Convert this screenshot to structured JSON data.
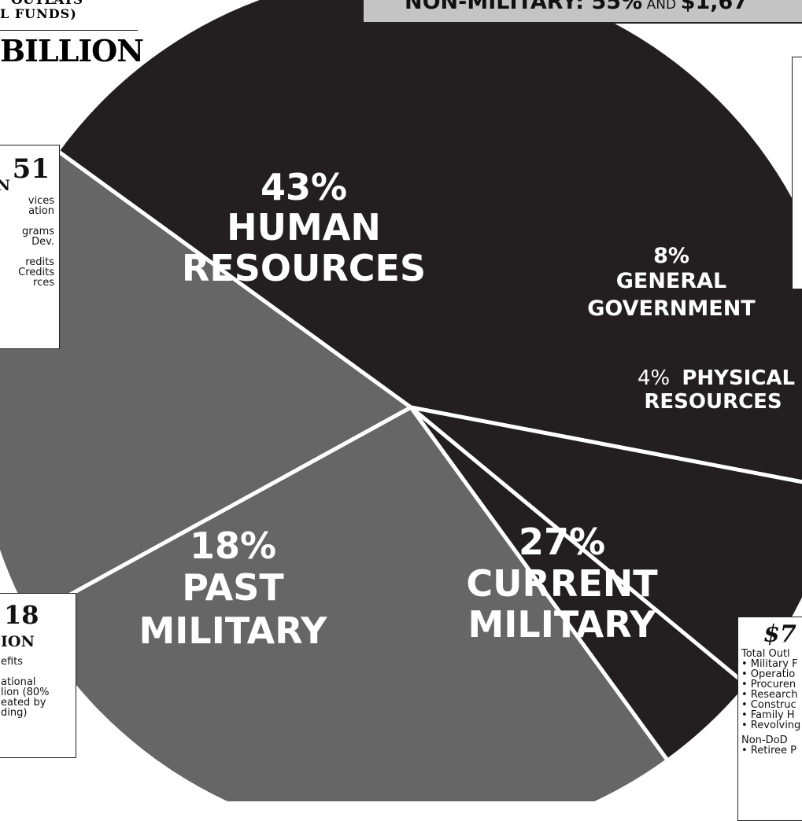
{
  "banner": {
    "text_big_1": "NON-MILITARY: 55%",
    "text_small": "AND",
    "text_big_2": "$1,67"
  },
  "header": {
    "line1": "OUTLAYS",
    "line2": "L FUNDS)",
    "total": "BILLION"
  },
  "left_box": {
    "amount": "51",
    "unit": "N",
    "lines": [
      "vices",
      "ation",
      "",
      "grams",
      "Dev.",
      "",
      "redits",
      "Credits",
      "rces"
    ]
  },
  "lower_left_box": {
    "amount": "18",
    "unit": "ION",
    "lines": [
      "efits",
      "",
      "ational",
      "lion (80%",
      "eated by",
      "ding)"
    ]
  },
  "lower_right_box": {
    "amount": "$7",
    "lines": [
      "Total Outl",
      "• Military F",
      "• Operatio",
      "• Procuren",
      "• Research",
      "• Construc",
      "• Family H",
      "• Revolving",
      "Non-DoD",
      "• Retiree P"
    ]
  },
  "chart_data": {
    "type": "pie",
    "slices": [
      {
        "label": "HUMAN RESOURCES",
        "value": 43,
        "color": "#231f20"
      },
      {
        "label": "GENERAL GOVERNMENT",
        "value": 8,
        "color": "#231f20"
      },
      {
        "label": "PHYSICAL RESOURCES",
        "value": 4,
        "color": "#231f20"
      },
      {
        "label": "CURRENT MILITARY",
        "value": 27,
        "color": "#666666"
      },
      {
        "label": "PAST MILITARY",
        "value": 18,
        "color": "#666666"
      }
    ],
    "labels": {
      "human": {
        "pct": "43%",
        "l1": "HUMAN",
        "l2": "RESOURCES"
      },
      "general": {
        "pct": "8%",
        "l1": "GENERAL",
        "l2": "GOVERNMENT"
      },
      "physical": {
        "pct": "4%",
        "l1": "PHYSICAL",
        "l2": "RESOURCES"
      },
      "current": {
        "pct": "27%",
        "l1": "CURRENT",
        "l2": "MILITARY"
      },
      "past": {
        "pct": "18%",
        "l1": "PAST",
        "l2": "MILITARY"
      }
    }
  }
}
